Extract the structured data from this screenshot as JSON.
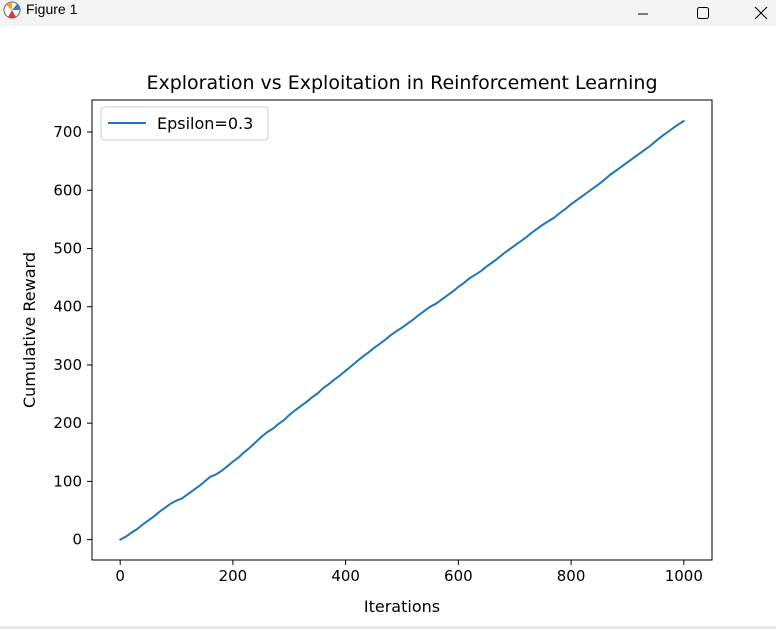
{
  "window": {
    "title": "Figure 1",
    "icons": {
      "app": "matplotlib-figure-icon",
      "minimize": "minimize-icon",
      "maximize": "maximize-icon",
      "close": "close-icon"
    }
  },
  "chart_data": {
    "type": "line",
    "title": "Exploration vs Exploitation in Reinforcement Learning",
    "xlabel": "Iterations",
    "ylabel": "Cumulative Reward",
    "xlim": [
      -50,
      1050
    ],
    "ylim": [
      -35,
      755
    ],
    "xticks": [
      0,
      200,
      400,
      600,
      800,
      1000
    ],
    "yticks": [
      0,
      100,
      200,
      300,
      400,
      500,
      600,
      700
    ],
    "grid": false,
    "legend_position": "upper-left",
    "series": [
      {
        "name": "Epsilon=0.3",
        "color": "#1f77b4",
        "x": [
          0,
          10,
          20,
          30,
          40,
          50,
          60,
          70,
          80,
          90,
          100,
          110,
          120,
          130,
          140,
          150,
          160,
          170,
          180,
          190,
          200,
          210,
          220,
          230,
          240,
          250,
          260,
          270,
          280,
          290,
          300,
          310,
          320,
          330,
          340,
          350,
          360,
          370,
          380,
          390,
          400,
          410,
          420,
          430,
          440,
          450,
          460,
          470,
          480,
          490,
          500,
          510,
          520,
          530,
          540,
          550,
          560,
          570,
          580,
          590,
          600,
          610,
          620,
          630,
          640,
          650,
          660,
          670,
          680,
          690,
          700,
          710,
          720,
          730,
          740,
          750,
          760,
          770,
          780,
          790,
          800,
          810,
          820,
          830,
          840,
          850,
          860,
          870,
          880,
          890,
          900,
          910,
          920,
          930,
          940,
          950,
          960,
          970,
          980,
          990,
          1000
        ],
        "y": [
          0,
          5,
          12,
          18,
          26,
          33,
          40,
          48,
          55,
          62,
          67,
          71,
          78,
          85,
          92,
          100,
          108,
          112,
          118,
          126,
          134,
          141,
          150,
          158,
          167,
          176,
          184,
          190,
          198,
          205,
          214,
          222,
          229,
          236,
          244,
          251,
          260,
          267,
          275,
          282,
          290,
          298,
          306,
          314,
          321,
          329,
          336,
          343,
          351,
          358,
          364,
          371,
          378,
          386,
          393,
          400,
          405,
          412,
          419,
          426,
          434,
          441,
          449,
          455,
          461,
          469,
          476,
          483,
          491,
          498,
          505,
          512,
          519,
          527,
          534,
          541,
          547,
          553,
          561,
          568,
          576,
          583,
          590,
          597,
          604,
          611,
          619,
          627,
          634,
          641,
          648,
          655,
          662,
          669,
          676,
          684,
          692,
          699,
          706,
          713,
          719
        ]
      }
    ]
  }
}
